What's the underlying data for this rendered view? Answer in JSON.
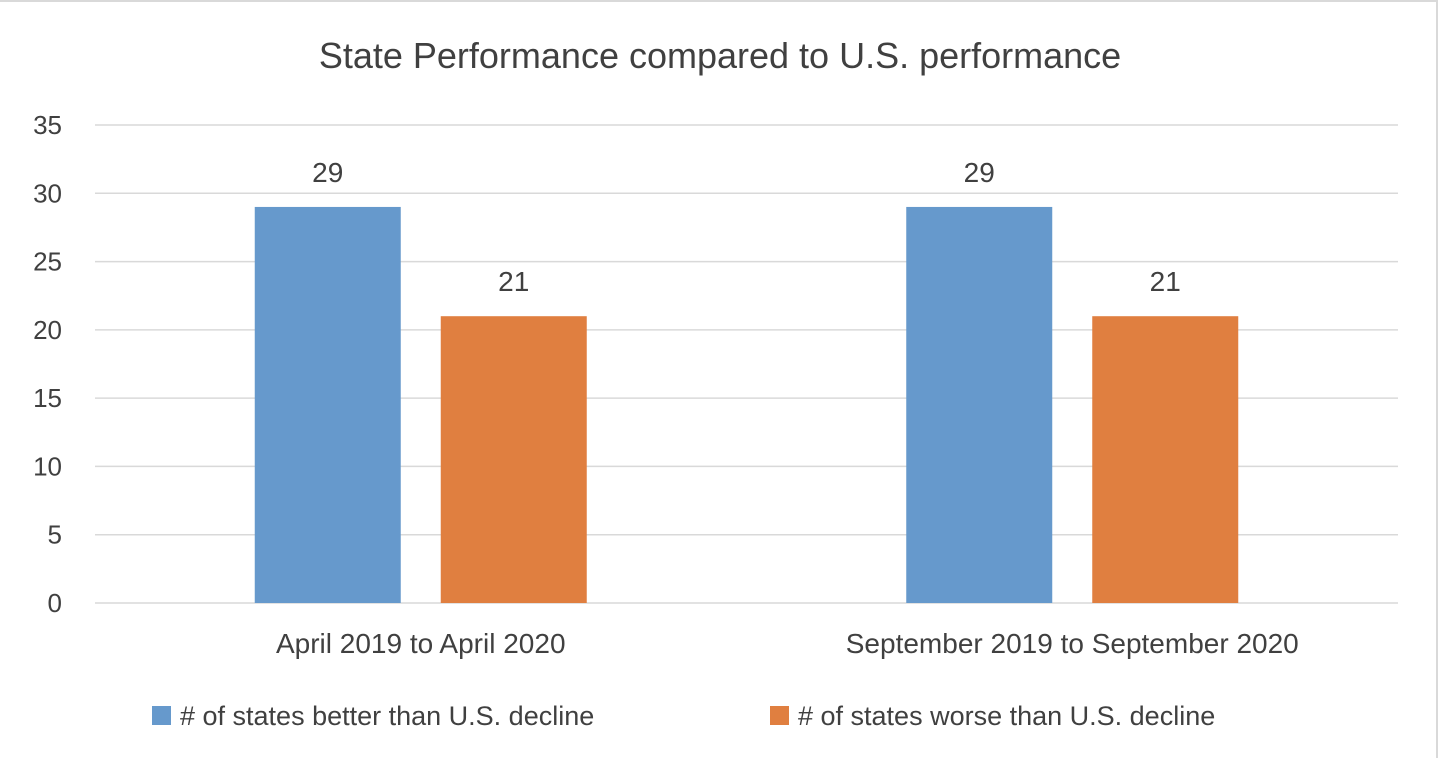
{
  "chart_data": {
    "type": "bar",
    "title": "State Performance compared to U.S. performance",
    "xlabel": "",
    "ylabel": "",
    "categories": [
      "April 2019 to April 2020",
      "September 2019 to September 2020"
    ],
    "series": [
      {
        "name": "# of states better than U.S. decline",
        "values": [
          29,
          29
        ],
        "color": "#6699cc"
      },
      {
        "name": "# of states worse than U.S. decline",
        "values": [
          21,
          21
        ],
        "color": "#e07f40"
      }
    ],
    "ylim": [
      0,
      35
    ],
    "yticks": [
      0,
      5,
      10,
      15,
      20,
      25,
      30,
      35
    ],
    "grid": true,
    "legend_position": "bottom",
    "data_labels": true
  }
}
